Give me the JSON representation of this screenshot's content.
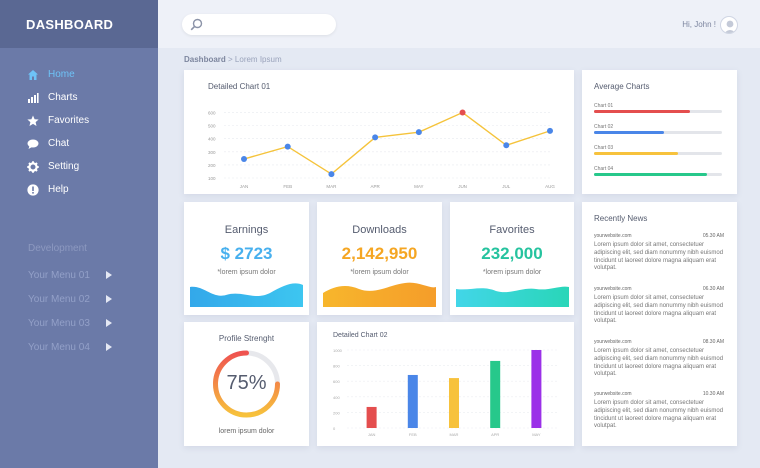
{
  "sidebar": {
    "title": "DASHBOARD",
    "nav": [
      {
        "label": "Home",
        "icon": "home-icon",
        "active": true
      },
      {
        "label": "Charts",
        "icon": "bar-chart-icon",
        "active": false
      },
      {
        "label": "Favorites",
        "icon": "star-icon",
        "active": false
      },
      {
        "label": "Chat",
        "icon": "chat-bubble-icon",
        "active": false
      },
      {
        "label": "Setting",
        "icon": "gear-icon",
        "active": false
      },
      {
        "label": "Help",
        "icon": "info-icon",
        "active": false
      }
    ],
    "section_title": "Development",
    "menus": [
      "Your Menu 01",
      "Your Menu 02",
      "Your Menu 03",
      "Your Menu 04"
    ]
  },
  "topbar": {
    "search_placeholder": "",
    "greeting": "Hi, John !"
  },
  "breadcrumb": {
    "root": "Dashboard",
    "separator": " > ",
    "current": "Lorem Ipsum"
  },
  "colors": {
    "accent": "#6ec3f7",
    "sidebar": "#6b7aa8",
    "red": "#e44e4e",
    "blue": "#4a86e8",
    "yellow": "#f7c23c",
    "green": "#27c88b",
    "purple": "#9b30e8"
  },
  "chart1": {
    "title": "Detailed Chart 01",
    "chart_data": {
      "type": "line",
      "categories": [
        "JAN",
        "FEB",
        "MAR",
        "APR",
        "MAY",
        "JUN",
        "JUL",
        "AUG"
      ],
      "values": [
        245,
        340,
        130,
        410,
        450,
        600,
        350,
        460
      ],
      "ylabels": [
        "600",
        "500",
        "400",
        "300",
        "200",
        "100"
      ],
      "ylim": [
        100,
        650
      ],
      "highlight_index": 5
    }
  },
  "avg": {
    "title": "Average Charts",
    "items": [
      {
        "label": "Chart 01",
        "value": 0.75,
        "color": "#e44e4e"
      },
      {
        "label": "Chart 02",
        "value": 0.55,
        "color": "#4a86e8"
      },
      {
        "label": "Chart 03",
        "value": 0.66,
        "color": "#f7c23c"
      },
      {
        "label": "Chart 04",
        "value": 0.88,
        "color": "#27c88b"
      }
    ]
  },
  "stats": [
    {
      "title": "Earnings",
      "value": "$ 2723",
      "sub": "*lorem ipsum dolor",
      "color": "#48b0ee"
    },
    {
      "title": "Downloads",
      "value": "2,142,950",
      "sub": "*lorem ipsum dolor",
      "color": "#f5a623"
    },
    {
      "title": "Favorites",
      "value": "232,000",
      "sub": "*lorem ipsum dolor",
      "color": "#26c39f"
    }
  ],
  "news": {
    "title": "Recently News",
    "items": [
      {
        "site": "yourwebsite.com",
        "time": "05.30 AM",
        "text": "Lorem ipsum dolor sit amet, consectetuer adipiscing elit, sed diam nonummy nibh euismod tincidunt ut laoreet dolore magna aliquam erat volutpat."
      },
      {
        "site": "yourwebsite.com",
        "time": "06.30 AM",
        "text": "Lorem ipsum dolor sit amet, consectetuer adipiscing elit, sed diam nonummy nibh euismod tincidunt ut laoreet dolore magna aliquam erat volutpat."
      },
      {
        "site": "yourwebsite.com",
        "time": "08.30 AM",
        "text": "Lorem ipsum dolor sit amet, consectetuer adipiscing elit, sed diam nonummy nibh euismod tincidunt ut laoreet dolore magna aliquam erat volutpat."
      },
      {
        "site": "yourwebsite.com",
        "time": "10.30 AM",
        "text": "Lorem ipsum dolor sit amet, consectetuer adipiscing elit, sed diam nonummy nibh euismod tincidunt ut laoreet dolore magna aliquam erat volutpat."
      }
    ]
  },
  "profile": {
    "title": "Profile Strenght",
    "value": "75%",
    "fraction": 0.75,
    "sub": "lorem ipsum dolor"
  },
  "chart2": {
    "title": "Detailed Chart 02",
    "chart_data": {
      "type": "bar",
      "categories": [
        "JAN",
        "FEB",
        "MAR",
        "APR",
        "MAY"
      ],
      "values": [
        270,
        680,
        640,
        860,
        1000
      ],
      "colors": [
        "#e44e4e",
        "#4a86e8",
        "#f7c23c",
        "#27c88b",
        "#9b30e8"
      ],
      "ylabels": [
        "1000",
        "800",
        "600",
        "400",
        "200",
        "0"
      ],
      "ylim": [
        0,
        1000
      ]
    }
  }
}
